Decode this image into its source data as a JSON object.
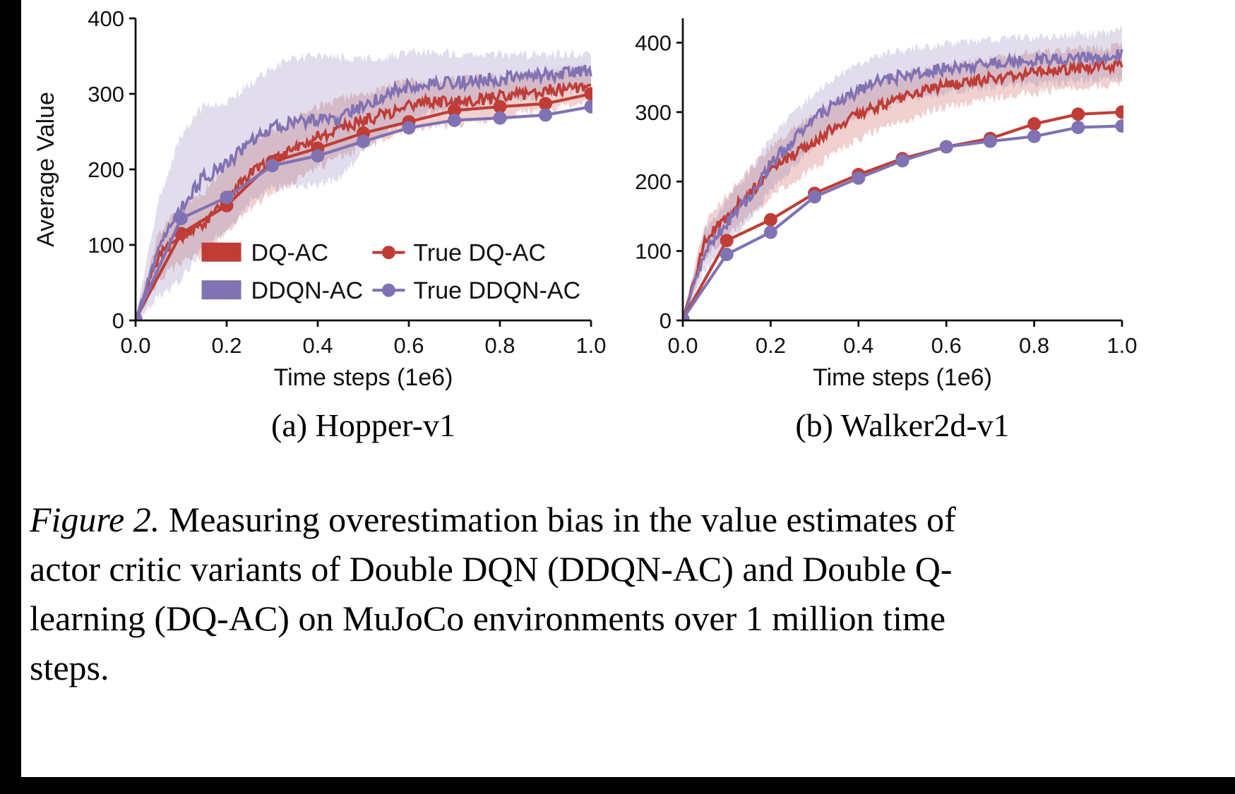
{
  "colors": {
    "red": "#bf3d36",
    "purple": "#8172b3"
  },
  "figure": {
    "subcaptions": [
      "(a) Hopper-v1",
      "(b) Walker2d-v1"
    ],
    "caption": {
      "label": "Figure 2.",
      "line1_rest": " Measuring overestimation bias in the value estimates of",
      "line2": "actor critic variants of Double DQN (DDQN-AC) and Double Q-",
      "line3": "learning (DQ-AC) on MuJoCo environments over 1 million time",
      "line4": "steps."
    }
  },
  "chart_data": [
    {
      "type": "line",
      "title": "(a) Hopper-v1",
      "xlabel": "Time steps (1e6)",
      "ylabel": "Average Value",
      "xlim": [
        0,
        1
      ],
      "ylim": [
        0,
        400
      ],
      "xticks": {
        "values": [
          0,
          0.2,
          0.4,
          0.6,
          0.8,
          1.0
        ],
        "labels": [
          "0.0",
          "0.2",
          "0.4",
          "0.6",
          "0.8",
          "1.0"
        ]
      },
      "yticks": {
        "values": [
          0,
          100,
          200,
          300,
          400
        ],
        "labels": [
          "0",
          "100",
          "200",
          "300",
          "400"
        ]
      },
      "legend": [
        {
          "label": "DQ-AC",
          "type": "patch",
          "color": "#bf3d36"
        },
        {
          "label": "DDQN-AC",
          "type": "patch",
          "color": "#8172b3"
        },
        {
          "label": "True DQ-AC",
          "type": "marker",
          "color": "#bf3d36"
        },
        {
          "label": "True DDQN-AC",
          "type": "marker",
          "color": "#8172b3"
        }
      ],
      "series": [
        {
          "name": "DQ-AC",
          "style": "band",
          "color": "#bf3d36",
          "noise": 8,
          "x": [
            0,
            0.05,
            0.1,
            0.15,
            0.2,
            0.25,
            0.3,
            0.35,
            0.4,
            0.45,
            0.5,
            0.55,
            0.6,
            0.65,
            0.7,
            0.75,
            0.8,
            0.85,
            0.9,
            0.95,
            1.0
          ],
          "mean": [
            0,
            85,
            112,
            128,
            160,
            193,
            212,
            226,
            243,
            255,
            265,
            274,
            284,
            289,
            289,
            292,
            296,
            300,
            304,
            307,
            310
          ],
          "band": [
            4,
            30,
            36,
            42,
            46,
            46,
            42,
            40,
            40,
            38,
            36,
            34,
            32,
            30,
            30,
            28,
            28,
            26,
            25,
            24,
            22
          ]
        },
        {
          "name": "DDQN-AC",
          "style": "band",
          "color": "#8172b3",
          "noise": 9,
          "x": [
            0,
            0.05,
            0.1,
            0.15,
            0.2,
            0.25,
            0.3,
            0.35,
            0.4,
            0.45,
            0.5,
            0.55,
            0.6,
            0.65,
            0.7,
            0.75,
            0.8,
            0.85,
            0.9,
            0.95,
            1.0
          ],
          "mean": [
            0,
            95,
            150,
            190,
            205,
            235,
            255,
            262,
            265,
            268,
            285,
            300,
            310,
            315,
            315,
            318,
            320,
            322,
            325,
            328,
            332
          ],
          "band": [
            4,
            65,
            95,
            95,
            85,
            78,
            80,
            85,
            85,
            80,
            60,
            50,
            45,
            40,
            38,
            35,
            32,
            30,
            28,
            25,
            22
          ]
        },
        {
          "name": "True DQ-AC",
          "style": "markers",
          "color": "#bf3d36",
          "x": [
            0,
            0.1,
            0.2,
            0.3,
            0.4,
            0.5,
            0.6,
            0.7,
            0.8,
            0.9,
            1.0
          ],
          "values": [
            2,
            115,
            152,
            210,
            228,
            248,
            263,
            278,
            283,
            287,
            300
          ]
        },
        {
          "name": "True DDQN-AC",
          "style": "markers",
          "color": "#8172b3",
          "x": [
            0,
            0.1,
            0.2,
            0.3,
            0.4,
            0.5,
            0.6,
            0.7,
            0.8,
            0.9,
            1.0
          ],
          "values": [
            2,
            135,
            163,
            205,
            218,
            237,
            255,
            265,
            268,
            272,
            283
          ]
        }
      ]
    },
    {
      "type": "line",
      "title": "(b) Walker2d-v1",
      "xlabel": "Time steps (1e6)",
      "ylabel": "",
      "xlim": [
        0,
        1
      ],
      "ylim": [
        0,
        435
      ],
      "xticks": {
        "values": [
          0,
          0.2,
          0.4,
          0.6,
          0.8,
          1.0
        ],
        "labels": [
          "0.0",
          "0.2",
          "0.4",
          "0.6",
          "0.8",
          "1.0"
        ]
      },
      "yticks": {
        "values": [
          0,
          100,
          200,
          300,
          400
        ],
        "labels": [
          "0",
          "100",
          "200",
          "300",
          "400"
        ]
      },
      "legend": null,
      "series": [
        {
          "name": "DQ-AC",
          "style": "band",
          "color": "#bf3d36",
          "noise": 8,
          "x": [
            0,
            0.05,
            0.1,
            0.15,
            0.2,
            0.25,
            0.3,
            0.35,
            0.4,
            0.45,
            0.5,
            0.55,
            0.6,
            0.65,
            0.7,
            0.75,
            0.8,
            0.85,
            0.9,
            0.95,
            1.0
          ],
          "mean": [
            0,
            115,
            150,
            182,
            215,
            237,
            258,
            280,
            296,
            310,
            320,
            330,
            338,
            343,
            348,
            352,
            356,
            360,
            363,
            366,
            368
          ],
          "band": [
            4,
            25,
            30,
            34,
            36,
            38,
            38,
            36,
            35,
            34,
            33,
            32,
            31,
            30,
            30,
            29,
            29,
            28,
            28,
            27,
            27
          ]
        },
        {
          "name": "DDQN-AC",
          "style": "band",
          "color": "#8172b3",
          "noise": 9,
          "x": [
            0,
            0.05,
            0.1,
            0.15,
            0.2,
            0.25,
            0.3,
            0.35,
            0.4,
            0.45,
            0.5,
            0.55,
            0.6,
            0.65,
            0.7,
            0.75,
            0.8,
            0.85,
            0.9,
            0.95,
            1.0
          ],
          "mean": [
            0,
            100,
            140,
            178,
            225,
            258,
            290,
            313,
            331,
            345,
            352,
            358,
            363,
            367,
            370,
            372,
            374,
            376,
            378,
            380,
            382
          ],
          "band": [
            4,
            28,
            32,
            34,
            36,
            38,
            38,
            38,
            37,
            36,
            36,
            35,
            35,
            34,
            34,
            34,
            33,
            33,
            33,
            33,
            35
          ]
        },
        {
          "name": "True DQ-AC",
          "style": "markers",
          "color": "#bf3d36",
          "x": [
            0,
            0.1,
            0.2,
            0.3,
            0.4,
            0.5,
            0.6,
            0.7,
            0.8,
            0.9,
            1.0
          ],
          "values": [
            2,
            115,
            145,
            183,
            210,
            233,
            250,
            262,
            283,
            297,
            300
          ]
        },
        {
          "name": "True DDQN-AC",
          "style": "markers",
          "color": "#8172b3",
          "x": [
            0,
            0.1,
            0.2,
            0.3,
            0.4,
            0.5,
            0.6,
            0.7,
            0.8,
            0.9,
            1.0
          ],
          "values": [
            2,
            95,
            127,
            178,
            205,
            230,
            250,
            258,
            265,
            278,
            280
          ]
        }
      ]
    }
  ]
}
